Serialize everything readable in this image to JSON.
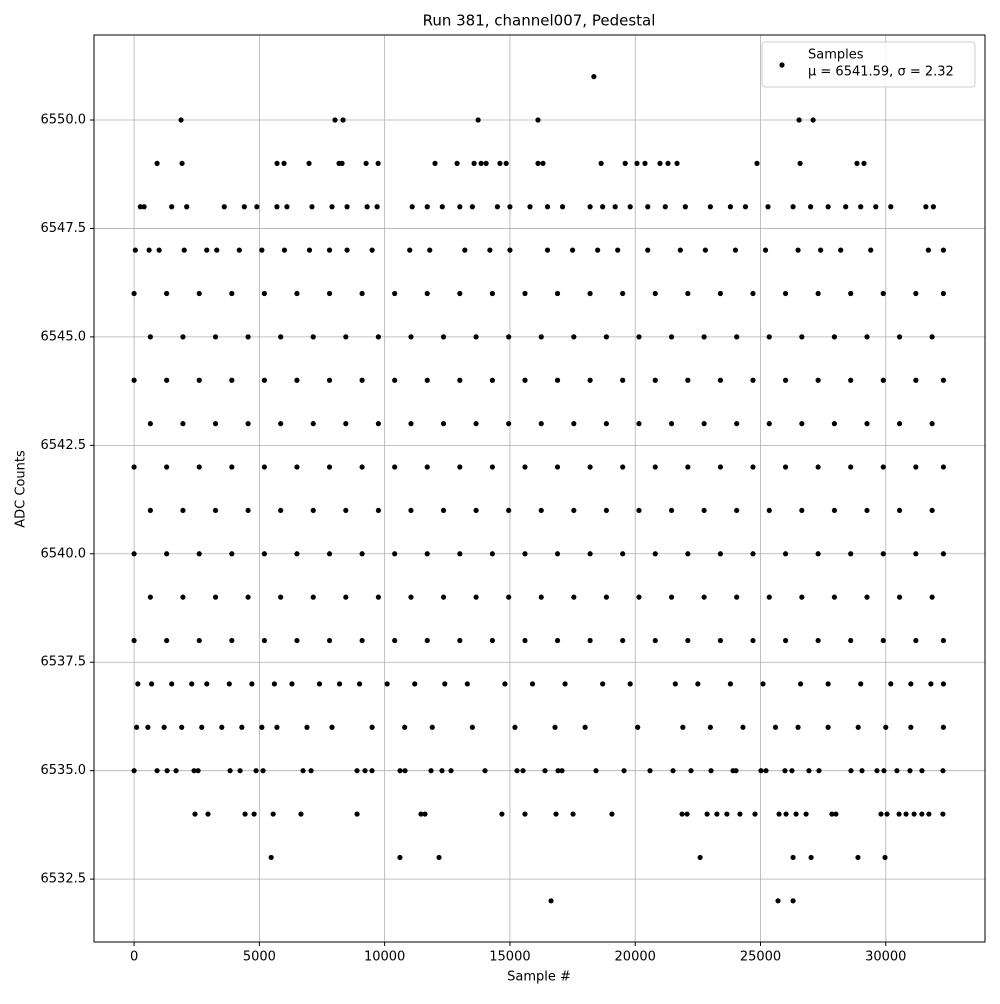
{
  "chart_data": {
    "type": "scatter",
    "title": "Run 381, channel007, Pedestal",
    "xlabel": "Sample #",
    "ylabel": "ADC Counts",
    "xlim": [
      -1600,
      33960
    ],
    "ylim": [
      6531.05,
      6551.96
    ],
    "xticks": [
      0,
      5000,
      10000,
      15000,
      20000,
      25000,
      30000
    ],
    "yticks": [
      6532.5,
      {
        "value": 6535,
        "label": "6535.0"
      },
      6537.5,
      {
        "value": 6540,
        "label": "6540.0"
      },
      6542.5,
      {
        "value": 6545,
        "label": "6545.0"
      },
      6547.5,
      {
        "value": 6550,
        "label": "6550.0"
      }
    ],
    "grid": true,
    "legend": "upper right",
    "legend_note": "μ = 6541.59, σ = 2.32",
    "series": [
      {
        "name": "Samples",
        "color": "#000000",
        "x": [
          18350,
          1875,
          8020,
          8340,
          13730,
          16120,
          26540,
          27100,
          918,
          1915,
          5706,
          5985,
          6983,
          8180,
          8300,
          9260,
          9740,
          12010,
          12890,
          13570,
          13850,
          14050,
          14600,
          14850,
          16120,
          16320,
          18640,
          19600,
          20070,
          20390,
          20990,
          21310,
          21670,
          24860,
          26580,
          28850,
          29130,
          250,
          400,
          1500,
          2100,
          3600,
          4400,
          4900,
          5700,
          6100,
          7100,
          7900,
          8500,
          9300,
          9700,
          11100,
          11700,
          12300,
          13000,
          13500,
          14500,
          15000,
          15800,
          16500,
          17100,
          18200,
          18700,
          19200,
          19800,
          20500,
          21200,
          22000,
          23000,
          23800,
          24400,
          25300,
          26300,
          27000,
          27700,
          28400,
          29000,
          29600,
          30200,
          31600,
          31900,
          50,
          600,
          1000,
          2000,
          2900,
          3300,
          4200,
          5100,
          6000,
          7000,
          7800,
          8500,
          9500,
          11000,
          11800,
          13200,
          14200,
          15000,
          16500,
          17500,
          18500,
          19300,
          20500,
          21800,
          22800,
          24000,
          25200,
          26500,
          27400,
          28200,
          29400,
          31700,
          32300,
          0,
          1300,
          2600,
          3900,
          5200,
          6500,
          7800,
          9100,
          10400,
          11700,
          13000,
          14300,
          15600,
          16900,
          18200,
          19500,
          20800,
          22100,
          23400,
          24700,
          26000,
          27300,
          28600,
          29900,
          31200,
          32300,
          650,
          1950,
          3250,
          4550,
          5850,
          7150,
          8450,
          9750,
          11050,
          12350,
          13650,
          14950,
          16250,
          17550,
          18850,
          20150,
          21450,
          22750,
          24050,
          25350,
          26650,
          27950,
          29250,
          30550,
          31850,
          0,
          1300,
          2600,
          3900,
          5200,
          6500,
          7800,
          9100,
          10400,
          11700,
          13000,
          14300,
          15600,
          16900,
          18200,
          19500,
          20800,
          22100,
          23400,
          24700,
          26000,
          27300,
          28600,
          29900,
          31200,
          32300,
          650,
          1950,
          3250,
          4550,
          5850,
          7150,
          8450,
          9750,
          11050,
          12350,
          13650,
          14950,
          16250,
          17550,
          18850,
          20150,
          21450,
          22750,
          24050,
          25350,
          26650,
          27950,
          29250,
          30550,
          31850,
          0,
          1300,
          2600,
          3900,
          5200,
          6500,
          7800,
          9100,
          10400,
          11700,
          13000,
          14300,
          15600,
          16900,
          18200,
          19500,
          20800,
          22100,
          23400,
          24700,
          26000,
          27300,
          28600,
          29900,
          31200,
          32300,
          650,
          1950,
          3250,
          4550,
          5850,
          7150,
          8450,
          9750,
          11050,
          12350,
          13650,
          14950,
          16250,
          17550,
          18850,
          20150,
          21450,
          22750,
          24050,
          25350,
          26650,
          27950,
          29250,
          30550,
          31850,
          0,
          1300,
          2600,
          3900,
          5200,
          6500,
          7800,
          9100,
          10400,
          11700,
          13000,
          14300,
          15600,
          16900,
          18200,
          19500,
          20800,
          22100,
          23400,
          24700,
          26000,
          27300,
          28600,
          29900,
          31200,
          32300,
          650,
          1950,
          3250,
          4550,
          5850,
          7150,
          8450,
          9750,
          11050,
          12350,
          13650,
          14950,
          16250,
          17550,
          18850,
          20150,
          21450,
          22750,
          24050,
          25350,
          26650,
          27950,
          29250,
          30550,
          31850,
          0,
          1300,
          2600,
          3900,
          5200,
          6500,
          7800,
          9100,
          10400,
          11700,
          13000,
          14300,
          15600,
          16900,
          18200,
          19500,
          20800,
          22100,
          23400,
          24700,
          26000,
          27300,
          28600,
          29900,
          31200,
          32300,
          150,
          700,
          1500,
          2300,
          2900,
          3800,
          4700,
          5600,
          6300,
          7400,
          8200,
          9000,
          10100,
          11200,
          12400,
          13300,
          14800,
          15900,
          17200,
          18700,
          19800,
          21600,
          22500,
          23800,
          25100,
          26600,
          27700,
          29000,
          30200,
          31000,
          31800,
          32300,
          100,
          550,
          1200,
          1900,
          2700,
          3500,
          4300,
          5100,
          5700,
          6900,
          7900,
          9500,
          10800,
          11900,
          13500,
          15200,
          16800,
          18000,
          20100,
          21900,
          23000,
          24300,
          25600,
          26500,
          27700,
          28900,
          30000,
          31000,
          32300,
          0,
          918,
          1317,
          1676,
          2394,
          2554,
          3831,
          4230,
          4868,
          5147,
          6743,
          7062,
          8898,
          9217,
          9496,
          10614,
          10813,
          11851,
          12290,
          12649,
          14006,
          15283,
          15522,
          16400,
          16919,
          17079,
          18436,
          19554,
          20591,
          21509,
          22227,
          23025,
          23903,
          24022,
          25020,
          25219,
          25977,
          26256,
          26935,
          27334,
          28611,
          29050,
          29648,
          29927,
          30446,
          30965,
          31444,
          32282,
          2430,
          2950,
          4430,
          4790,
          5550,
          6660,
          8900,
          11450,
          11610,
          14680,
          15600,
          16840,
          17520,
          19070,
          21870,
          22070,
          22870,
          23260,
          23660,
          24180,
          24780,
          25740,
          26020,
          26420,
          26820,
          27850,
          28010,
          29810,
          30050,
          30530,
          30810,
          31130,
          31440,
          31720,
          32280,
          5470,
          10610,
          12170,
          22590,
          26300,
          27020,
          28890,
          29970,
          16640,
          25700,
          26300
        ],
        "values": [
          6551,
          6550,
          6550,
          6550,
          6550,
          6550,
          6550,
          6550,
          6549,
          6549,
          6549,
          6549,
          6549,
          6549,
          6549,
          6549,
          6549,
          6549,
          6549,
          6549,
          6549,
          6549,
          6549,
          6549,
          6549,
          6549,
          6549,
          6549,
          6549,
          6549,
          6549,
          6549,
          6549,
          6549,
          6549,
          6549,
          6549,
          6548,
          6548,
          6548,
          6548,
          6548,
          6548,
          6548,
          6548,
          6548,
          6548,
          6548,
          6548,
          6548,
          6548,
          6548,
          6548,
          6548,
          6548,
          6548,
          6548,
          6548,
          6548,
          6548,
          6548,
          6548,
          6548,
          6548,
          6548,
          6548,
          6548,
          6548,
          6548,
          6548,
          6548,
          6548,
          6548,
          6548,
          6548,
          6548,
          6548,
          6548,
          6548,
          6548,
          6548,
          6547,
          6547,
          6547,
          6547,
          6547,
          6547,
          6547,
          6547,
          6547,
          6547,
          6547,
          6547,
          6547,
          6547,
          6547,
          6547,
          6547,
          6547,
          6547,
          6547,
          6547,
          6547,
          6547,
          6547,
          6547,
          6547,
          6547,
          6547,
          6547,
          6547,
          6547,
          6547,
          6547,
          6546,
          6546,
          6546,
          6546,
          6546,
          6546,
          6546,
          6546,
          6546,
          6546,
          6546,
          6546,
          6546,
          6546,
          6546,
          6546,
          6546,
          6546,
          6546,
          6546,
          6546,
          6546,
          6546,
          6546,
          6546,
          6546,
          6545,
          6545,
          6545,
          6545,
          6545,
          6545,
          6545,
          6545,
          6545,
          6545,
          6545,
          6545,
          6545,
          6545,
          6545,
          6545,
          6545,
          6545,
          6545,
          6545,
          6545,
          6545,
          6545,
          6545,
          6545,
          6544,
          6544,
          6544,
          6544,
          6544,
          6544,
          6544,
          6544,
          6544,
          6544,
          6544,
          6544,
          6544,
          6544,
          6544,
          6544,
          6544,
          6544,
          6544,
          6544,
          6544,
          6544,
          6544,
          6544,
          6544,
          6544,
          6543,
          6543,
          6543,
          6543,
          6543,
          6543,
          6543,
          6543,
          6543,
          6543,
          6543,
          6543,
          6543,
          6543,
          6543,
          6543,
          6543,
          6543,
          6543,
          6543,
          6543,
          6543,
          6543,
          6543,
          6543,
          6542,
          6542,
          6542,
          6542,
          6542,
          6542,
          6542,
          6542,
          6542,
          6542,
          6542,
          6542,
          6542,
          6542,
          6542,
          6542,
          6542,
          6542,
          6542,
          6542,
          6542,
          6542,
          6542,
          6542,
          6542,
          6542,
          6541,
          6541,
          6541,
          6541,
          6541,
          6541,
          6541,
          6541,
          6541,
          6541,
          6541,
          6541,
          6541,
          6541,
          6541,
          6541,
          6541,
          6541,
          6541,
          6541,
          6541,
          6541,
          6541,
          6541,
          6541,
          6540,
          6540,
          6540,
          6540,
          6540,
          6540,
          6540,
          6540,
          6540,
          6540,
          6540,
          6540,
          6540,
          6540,
          6540,
          6540,
          6540,
          6540,
          6540,
          6540,
          6540,
          6540,
          6540,
          6540,
          6540,
          6540,
          6539,
          6539,
          6539,
          6539,
          6539,
          6539,
          6539,
          6539,
          6539,
          6539,
          6539,
          6539,
          6539,
          6539,
          6539,
          6539,
          6539,
          6539,
          6539,
          6539,
          6539,
          6539,
          6539,
          6539,
          6539,
          6538,
          6538,
          6538,
          6538,
          6538,
          6538,
          6538,
          6538,
          6538,
          6538,
          6538,
          6538,
          6538,
          6538,
          6538,
          6538,
          6538,
          6538,
          6538,
          6538,
          6538,
          6538,
          6538,
          6538,
          6538,
          6538,
          6537,
          6537,
          6537,
          6537,
          6537,
          6537,
          6537,
          6537,
          6537,
          6537,
          6537,
          6537,
          6537,
          6537,
          6537,
          6537,
          6537,
          6537,
          6537,
          6537,
          6537,
          6537,
          6537,
          6537,
          6537,
          6537,
          6537,
          6537,
          6537,
          6537,
          6537,
          6537,
          6536,
          6536,
          6536,
          6536,
          6536,
          6536,
          6536,
          6536,
          6536,
          6536,
          6536,
          6536,
          6536,
          6536,
          6536,
          6536,
          6536,
          6536,
          6536,
          6536,
          6536,
          6536,
          6536,
          6536,
          6536,
          6536,
          6536,
          6536,
          6536,
          6535,
          6535,
          6535,
          6535,
          6535,
          6535,
          6535,
          6535,
          6535,
          6535,
          6535,
          6535,
          6535,
          6535,
          6535,
          6535,
          6535,
          6535,
          6535,
          6535,
          6535,
          6535,
          6535,
          6535,
          6535,
          6535,
          6535,
          6535,
          6535,
          6535,
          6535,
          6535,
          6535,
          6535,
          6535,
          6535,
          6535,
          6535,
          6535,
          6535,
          6535,
          6535,
          6535,
          6535,
          6535,
          6535,
          6535,
          6535,
          6534,
          6534,
          6534,
          6534,
          6534,
          6534,
          6534,
          6534,
          6534,
          6534,
          6534,
          6534,
          6534,
          6534,
          6534,
          6534,
          6534,
          6534,
          6534,
          6534,
          6534,
          6534,
          6534,
          6534,
          6534,
          6534,
          6534,
          6534,
          6534,
          6534,
          6534,
          6534,
          6534,
          6534,
          6534,
          6533,
          6533,
          6533,
          6533,
          6533,
          6533,
          6533,
          6533,
          6532,
          6532,
          6532
        ]
      }
    ]
  }
}
